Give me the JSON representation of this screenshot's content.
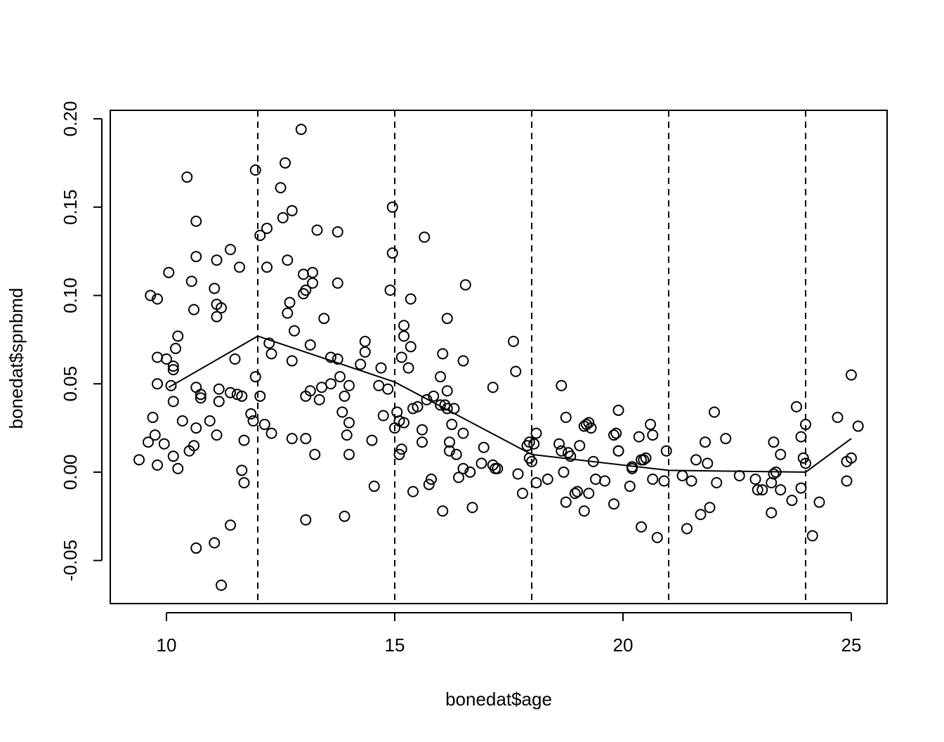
{
  "chart_data": {
    "type": "scatter",
    "xlabel": "bonedat$age",
    "ylabel": "bonedat$spnbmd",
    "xlim": [
      8.769,
      25.785
    ],
    "ylim": [
      -0.0744,
      0.2048
    ],
    "xticks": [
      10,
      15,
      20,
      25
    ],
    "yticks": [
      -0.05,
      {
        "value": 0,
        "label": "0.00"
      },
      0.05,
      {
        "value": 0.1,
        "label": "0.10"
      },
      0.15,
      {
        "value": 0.2,
        "label": "0.20"
      }
    ],
    "color": "#000000",
    "knots": [
      12,
      15,
      18,
      21,
      24
    ],
    "fit": {
      "x": [
        10.05,
        12,
        15,
        18,
        21,
        24,
        25
      ],
      "y": [
        0.048,
        0.077,
        0.051,
        0.01,
        0.001,
        0.0,
        0.019
      ]
    },
    "x": [
      9.4,
      9.6,
      9.65,
      9.7,
      9.75,
      9.8,
      9.8,
      9.8,
      9.8,
      9.95,
      10.0,
      10.05,
      10.1,
      10.15,
      10.15,
      10.15,
      10.15,
      10.2,
      10.25,
      10.25,
      10.35,
      10.45,
      10.5,
      10.55,
      10.6,
      10.6,
      10.65,
      10.65,
      10.65,
      10.65,
      10.65,
      10.75,
      10.75,
      10.95,
      11.05,
      11.05,
      11.1,
      11.1,
      11.1,
      11.1,
      11.15,
      11.15,
      11.2,
      11.2,
      11.4,
      11.4,
      11.4,
      11.5,
      11.55,
      11.6,
      11.65,
      11.65,
      11.7,
      11.7,
      11.85,
      11.9,
      11.95,
      11.95,
      12.05,
      12.05,
      12.15,
      12.2,
      12.2,
      12.25,
      12.3,
      12.3,
      12.5,
      12.55,
      12.6,
      12.65,
      12.65,
      12.7,
      12.75,
      12.75,
      12.75,
      12.8,
      12.95,
      13.0,
      13.0,
      13.05,
      13.05,
      13.05,
      13.05,
      13.15,
      13.15,
      13.2,
      13.2,
      13.25,
      13.3,
      13.35,
      13.4,
      13.45,
      13.6,
      13.6,
      13.75,
      13.75,
      13.75,
      13.8,
      13.85,
      13.9,
      13.9,
      13.95,
      14.0,
      14.0,
      14.0,
      14.25,
      14.35,
      14.35,
      14.5,
      14.55,
      14.65,
      14.7,
      14.75,
      14.85,
      14.9,
      14.95,
      14.95,
      15.0,
      15.05,
      15.1,
      15.1,
      15.15,
      15.15,
      15.2,
      15.2,
      15.2,
      15.3,
      15.35,
      15.35,
      15.4,
      15.4,
      15.5,
      15.6,
      15.6,
      15.65,
      15.7,
      15.75,
      15.8,
      15.85,
      16.0,
      16.0,
      16.05,
      16.05,
      16.1,
      16.15,
      16.15,
      16.15,
      16.2,
      16.2,
      16.25,
      16.3,
      16.35,
      16.4,
      16.5,
      16.5,
      16.5,
      16.55,
      16.65,
      16.7,
      16.9,
      16.95,
      17.15,
      17.15,
      17.2,
      17.25,
      17.6,
      17.65,
      17.7,
      17.8,
      17.9,
      17.95,
      17.95,
      18.0,
      18.05,
      18.1,
      18.1,
      18.35,
      18.6,
      18.65,
      18.65,
      18.7,
      18.75,
      18.75,
      18.8,
      18.85,
      18.95,
      19.0,
      19.05,
      19.15,
      19.15,
      19.2,
      19.25,
      19.25,
      19.3,
      19.35,
      19.4,
      19.6,
      19.8,
      19.8,
      19.85,
      19.9,
      19.9,
      19.9,
      20.15,
      20.2,
      20.2,
      20.35,
      20.4,
      20.4,
      20.45,
      20.5,
      20.6,
      20.65,
      20.65,
      20.75,
      20.9,
      20.95,
      21.3,
      21.4,
      21.5,
      21.6,
      21.7,
      21.8,
      21.85,
      21.9,
      22.0,
      22.05,
      22.25,
      22.55,
      22.9,
      22.95,
      23.05,
      23.25,
      23.25,
      23.3,
      23.3,
      23.35,
      23.45,
      23.45,
      23.7,
      23.8,
      23.9,
      23.9,
      23.95,
      24.0,
      24.0,
      24.15,
      24.3,
      24.7,
      24.9,
      24.9,
      25.0,
      25.0,
      25.15
    ],
    "y": [
      0.007,
      0.017,
      0.1,
      0.031,
      0.021,
      0.098,
      0.065,
      0.05,
      0.004,
      0.016,
      0.064,
      0.113,
      0.049,
      0.06,
      0.058,
      0.04,
      0.009,
      0.07,
      0.077,
      0.002,
      0.029,
      0.167,
      0.012,
      0.108,
      0.092,
      0.015,
      0.142,
      0.122,
      0.048,
      0.025,
      -0.043,
      0.044,
      0.042,
      0.029,
      0.104,
      -0.04,
      0.12,
      0.095,
      0.088,
      0.021,
      0.047,
      0.04,
      0.093,
      -0.064,
      0.126,
      0.045,
      -0.03,
      0.064,
      0.044,
      0.116,
      0.043,
      0.001,
      0.018,
      -0.006,
      0.033,
      0.029,
      0.171,
      0.054,
      0.043,
      0.134,
      0.027,
      0.138,
      0.116,
      0.073,
      0.067,
      0.022,
      0.161,
      0.144,
      0.175,
      0.12,
      0.09,
      0.096,
      0.148,
      0.063,
      0.019,
      0.08,
      0.194,
      0.112,
      0.101,
      0.103,
      -0.027,
      0.019,
      0.043,
      0.072,
      0.046,
      0.113,
      0.107,
      0.01,
      0.137,
      0.041,
      0.048,
      0.087,
      0.065,
      0.05,
      0.136,
      0.107,
      0.064,
      0.054,
      0.034,
      0.043,
      -0.025,
      0.021,
      0.049,
      0.028,
      0.01,
      0.061,
      0.074,
      0.068,
      0.018,
      -0.008,
      0.049,
      0.059,
      0.032,
      0.047,
      0.103,
      0.15,
      0.124,
      0.025,
      0.034,
      0.01,
      0.029,
      0.065,
      0.013,
      0.028,
      0.083,
      0.077,
      0.059,
      0.098,
      0.071,
      -0.011,
      0.036,
      0.037,
      0.024,
      0.017,
      0.133,
      0.041,
      -0.007,
      -0.004,
      0.043,
      0.054,
      0.038,
      0.067,
      -0.022,
      0.038,
      0.087,
      0.046,
      0.036,
      0.017,
      0.012,
      0.027,
      0.036,
      0.01,
      -0.003,
      0.022,
      0.063,
      0.002,
      0.106,
      0.0,
      -0.02,
      0.005,
      0.014,
      0.048,
      0.004,
      0.002,
      0.002,
      0.074,
      0.057,
      -0.001,
      -0.012,
      0.015,
      0.017,
      0.008,
      0.006,
      0.016,
      0.022,
      -0.006,
      -0.004,
      0.016,
      0.049,
      0.012,
      0.0,
      -0.017,
      0.031,
      0.011,
      0.009,
      -0.012,
      -0.011,
      0.015,
      0.026,
      -0.022,
      0.027,
      0.028,
      -0.012,
      0.025,
      0.006,
      -0.004,
      -0.005,
      -0.018,
      0.021,
      0.022,
      0.012,
      0.035,
      0.012,
      -0.008,
      0.002,
      0.003,
      0.02,
      -0.031,
      0.007,
      0.007,
      0.008,
      0.027,
      -0.004,
      0.021,
      -0.037,
      -0.005,
      0.012,
      -0.002,
      -0.032,
      -0.005,
      0.007,
      -0.024,
      0.017,
      0.005,
      -0.02,
      0.034,
      -0.006,
      0.019,
      -0.002,
      -0.004,
      -0.01,
      -0.01,
      -0.006,
      -0.023,
      0.017,
      -0.001,
      0.0,
      0.01,
      -0.01,
      -0.016,
      0.037,
      -0.009,
      0.02,
      0.008,
      0.027,
      0.005,
      -0.036,
      -0.017,
      0.031,
      0.006,
      -0.005,
      0.008,
      0.055,
      0.026
    ]
  }
}
